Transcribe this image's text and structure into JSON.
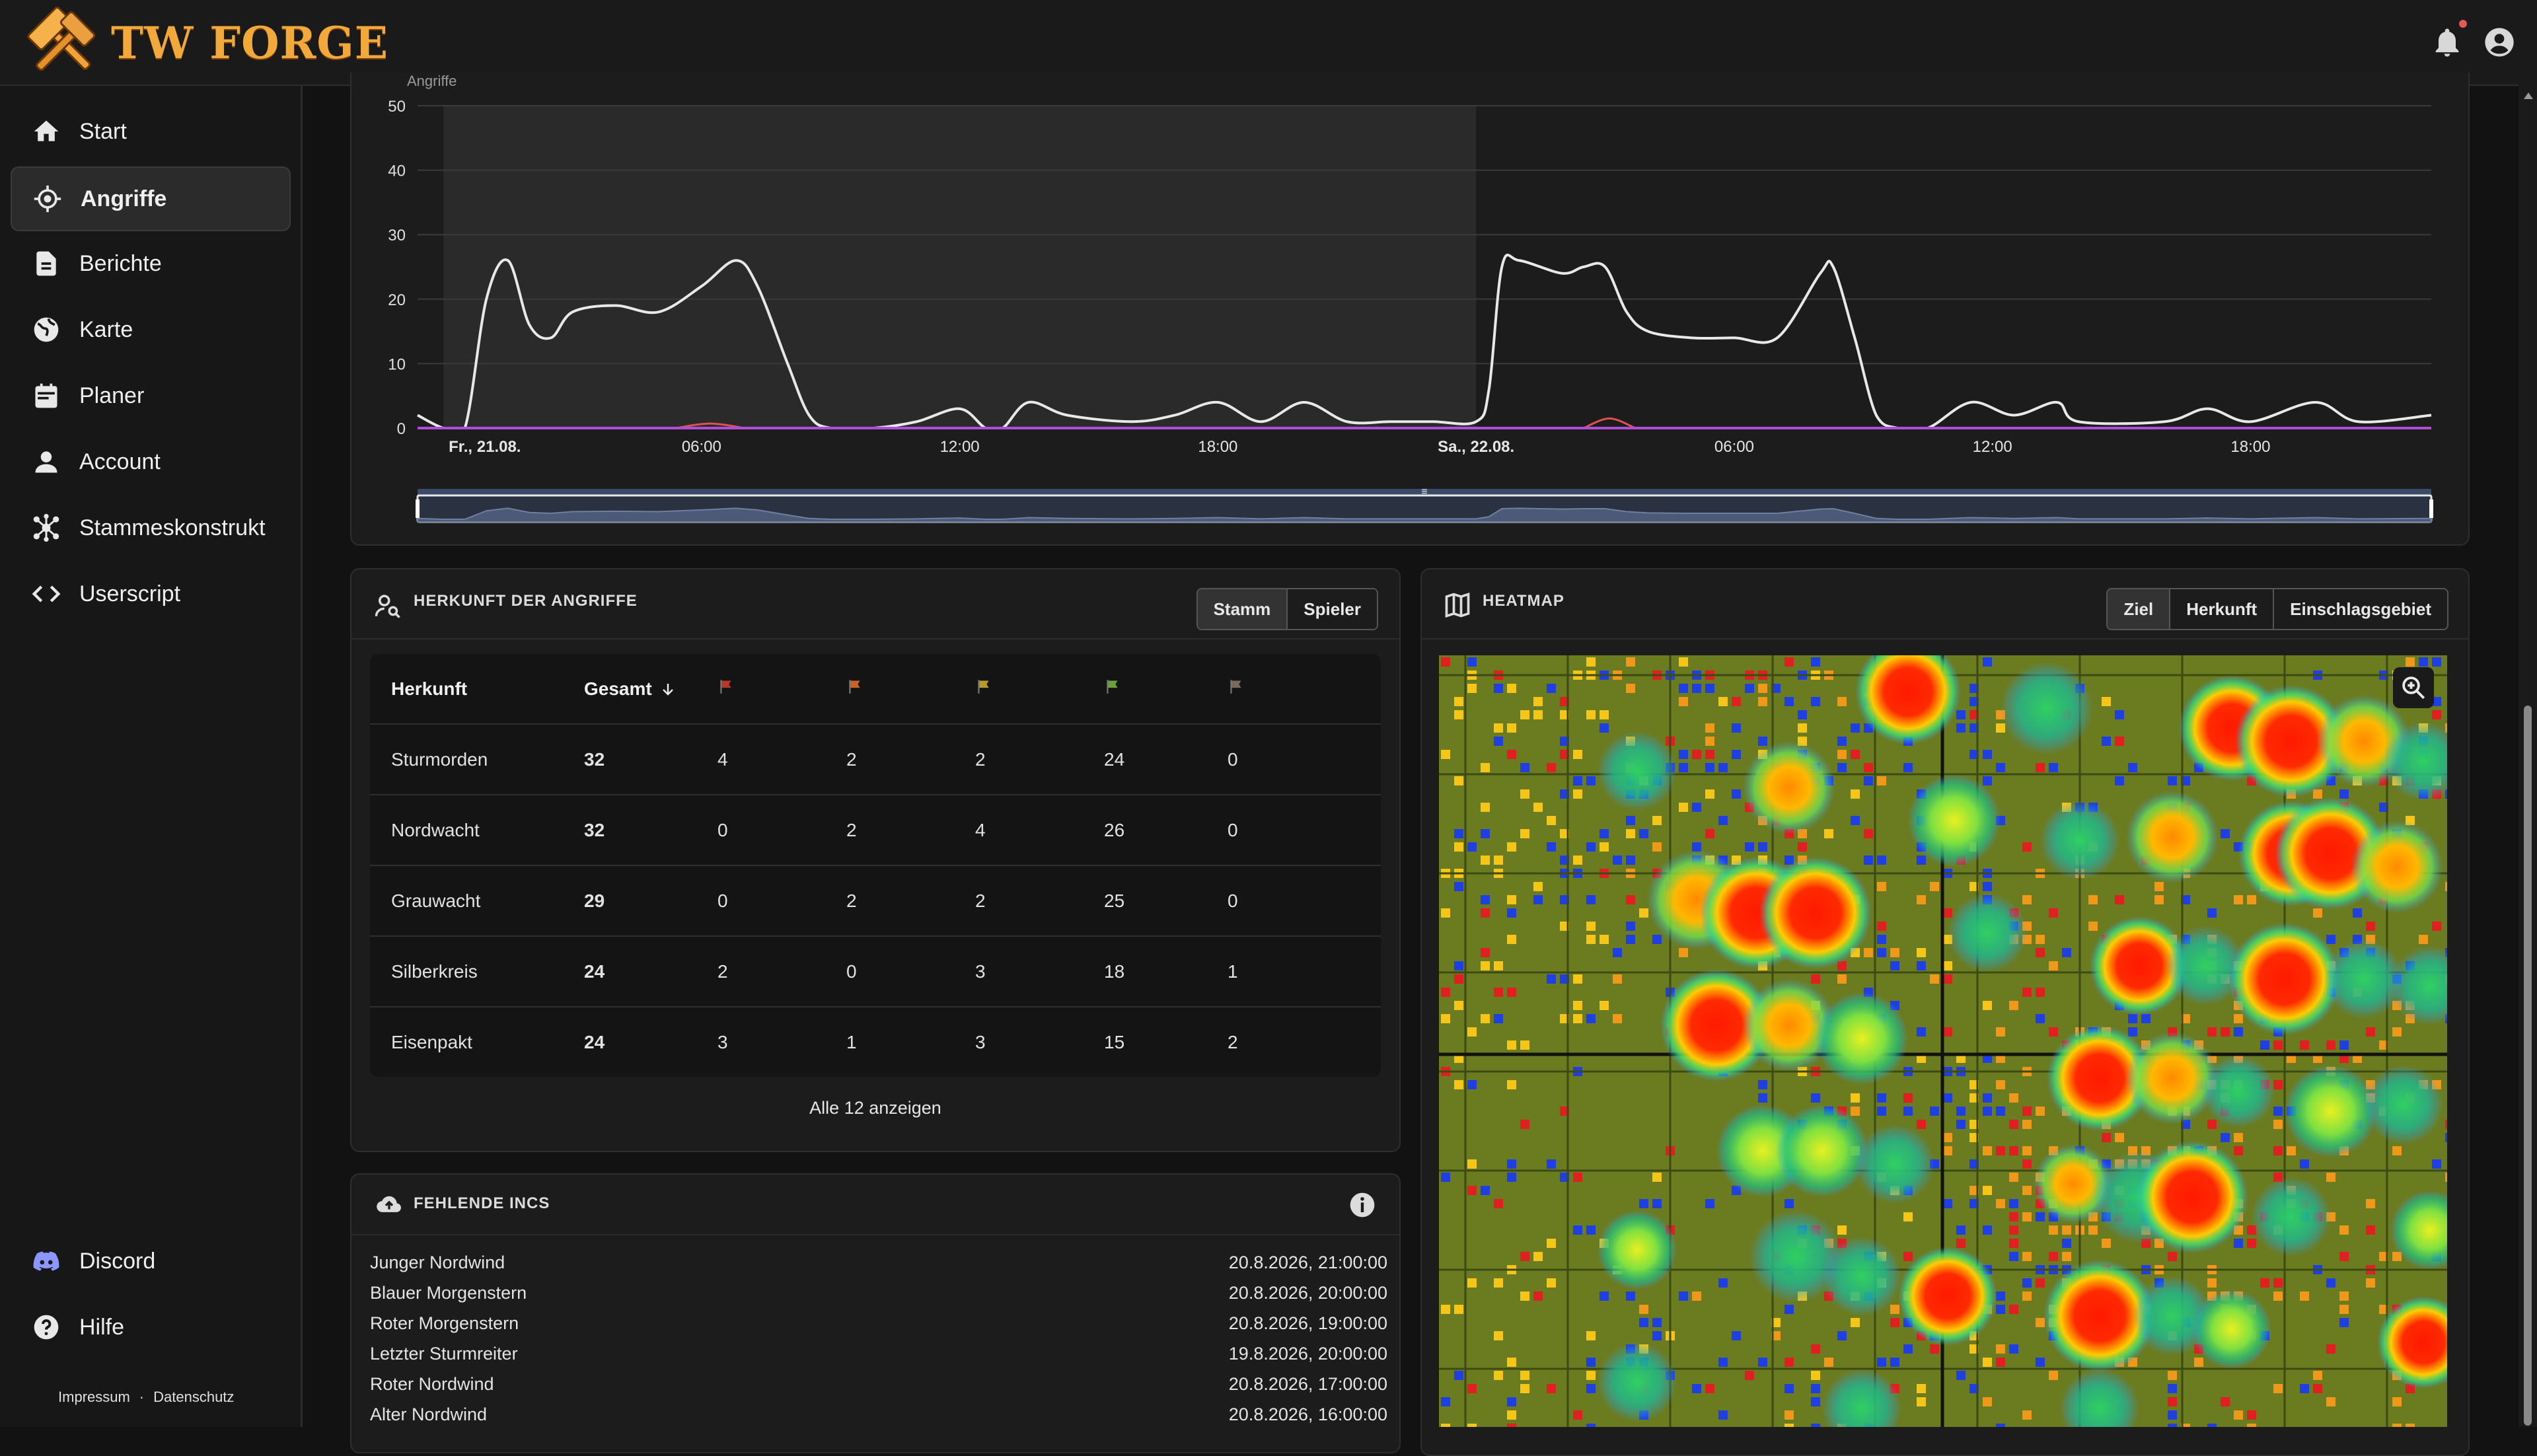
{
  "app": {
    "name": "TW FORGE"
  },
  "nav": {
    "items": [
      {
        "label": "Start",
        "icon": "home-icon"
      },
      {
        "label": "Angriffe",
        "icon": "crosshair-icon",
        "active": true
      },
      {
        "label": "Berichte",
        "icon": "document-icon"
      },
      {
        "label": "Karte",
        "icon": "globe-icon"
      },
      {
        "label": "Planer",
        "icon": "calendar-icon"
      },
      {
        "label": "Account",
        "icon": "person-icon"
      },
      {
        "label": "Stammeskonstrukt",
        "icon": "hub-icon"
      },
      {
        "label": "Userscript",
        "icon": "code-icon"
      }
    ],
    "bottom": [
      {
        "label": "Discord",
        "icon": "discord-icon"
      },
      {
        "label": "Hilfe",
        "icon": "help-icon"
      }
    ],
    "footer": {
      "impressum": "Impressum",
      "sep": "·",
      "datenschutz": "Datenschutz"
    }
  },
  "chart_data": {
    "type": "line",
    "y_axis_label_partial": "Angriffe",
    "ylim": [
      0,
      50
    ],
    "yticks": [
      "0",
      "10",
      "20",
      "30",
      "40",
      "50"
    ],
    "xticks": [
      "Fr., 21.08.",
      "06:00",
      "12:00",
      "18:00",
      "Sa., 22.08.",
      "06:00",
      "12:00",
      "18:00"
    ],
    "xticks_bold": [
      true,
      false,
      false,
      false,
      true,
      false,
      false,
      false
    ],
    "x_hours": [
      0,
      6,
      12,
      18,
      24,
      30,
      36,
      42
    ],
    "xlim_hours": [
      -0.6,
      46.2
    ],
    "series": [
      {
        "color": "#e8e8e8",
        "points": [
          [
            -0.6,
            2
          ],
          [
            0,
            0
          ],
          [
            0.5,
            0
          ],
          [
            1,
            20
          ],
          [
            1.5,
            26
          ],
          [
            2,
            16
          ],
          [
            2.5,
            14
          ],
          [
            3,
            18
          ],
          [
            4,
            19
          ],
          [
            5,
            18
          ],
          [
            6,
            22
          ],
          [
            6.8,
            26
          ],
          [
            7.3,
            22
          ],
          [
            8,
            10
          ],
          [
            8.5,
            2
          ],
          [
            9,
            0
          ],
          [
            10,
            0
          ],
          [
            11,
            1
          ],
          [
            12,
            3
          ],
          [
            12.6,
            0
          ],
          [
            13,
            0
          ],
          [
            13.6,
            4
          ],
          [
            14.5,
            2
          ],
          [
            16,
            1
          ],
          [
            17,
            2
          ],
          [
            18,
            4
          ],
          [
            19,
            1
          ],
          [
            20,
            4
          ],
          [
            21,
            1
          ],
          [
            22,
            1
          ],
          [
            23,
            1
          ],
          [
            24,
            1
          ],
          [
            24.3,
            6
          ],
          [
            24.6,
            25
          ],
          [
            25,
            26
          ],
          [
            26,
            24
          ],
          [
            26.5,
            25
          ],
          [
            27,
            25
          ],
          [
            27.5,
            18
          ],
          [
            28,
            15
          ],
          [
            29,
            14
          ],
          [
            30,
            14
          ],
          [
            31,
            14
          ],
          [
            32,
            24
          ],
          [
            32.3,
            25
          ],
          [
            32.8,
            14
          ],
          [
            33.3,
            2
          ],
          [
            33.8,
            0
          ],
          [
            34.5,
            0
          ],
          [
            35.5,
            4
          ],
          [
            36.5,
            2
          ],
          [
            37.5,
            4
          ],
          [
            38,
            1
          ],
          [
            40,
            1
          ],
          [
            41,
            3
          ],
          [
            42,
            1
          ],
          [
            43.5,
            4
          ],
          [
            44.5,
            1
          ],
          [
            46.2,
            2
          ]
        ]
      },
      {
        "color": "#e05252",
        "points": [
          [
            5.4,
            0
          ],
          [
            6.2,
            0.7
          ],
          [
            7,
            0
          ],
          [
            26.5,
            0
          ],
          [
            27.1,
            1.5
          ],
          [
            27.7,
            0
          ]
        ]
      },
      {
        "color": "#b04dd6",
        "points": [
          [
            -0.6,
            0
          ],
          [
            46.2,
            0
          ]
        ]
      }
    ]
  },
  "origin_card": {
    "title": "HERKUNFT DER ANGRIFFE",
    "toggle": [
      "Stamm",
      "Spieler"
    ],
    "active": "Stamm",
    "columns": {
      "name": "Herkunft",
      "total": "Gesamt"
    },
    "flag_colors": [
      "#b8362c",
      "#c8642a",
      "#b59b2a",
      "#6aa13a",
      "#7a6a5a"
    ],
    "rows": [
      {
        "name": "Sturmorden",
        "total": "32",
        "v": [
          "4",
          "2",
          "2",
          "24",
          "0"
        ]
      },
      {
        "name": "Nordwacht",
        "total": "32",
        "v": [
          "0",
          "2",
          "4",
          "26",
          "0"
        ]
      },
      {
        "name": "Grauwacht",
        "total": "29",
        "v": [
          "0",
          "2",
          "2",
          "25",
          "0"
        ]
      },
      {
        "name": "Silberkreis",
        "total": "24",
        "v": [
          "2",
          "0",
          "3",
          "18",
          "1"
        ]
      },
      {
        "name": "Eisenpakt",
        "total": "24",
        "v": [
          "3",
          "1",
          "3",
          "15",
          "2"
        ]
      }
    ],
    "show_all": "Alle 12 anzeigen"
  },
  "missing_card": {
    "title": "FEHLENDE INCS",
    "rows": [
      {
        "name": "Junger Nordwind",
        "date": "20.8.2026, 21:00:00"
      },
      {
        "name": "Blauer Morgenstern",
        "date": "20.8.2026, 20:00:00"
      },
      {
        "name": "Roter Morgenstern",
        "date": "20.8.2026, 19:00:00"
      },
      {
        "name": "Letzter Sturmreiter",
        "date": "19.8.2026, 20:00:00"
      },
      {
        "name": "Roter Nordwind",
        "date": "20.8.2026, 17:00:00"
      },
      {
        "name": "Alter Nordwind",
        "date": "20.8.2026, 16:00:00"
      }
    ]
  },
  "heatmap_card": {
    "title": "HEATMAP",
    "toggle": [
      "Ziel",
      "Herkunft",
      "Einschlagsgebiet"
    ],
    "active": "Ziel"
  }
}
